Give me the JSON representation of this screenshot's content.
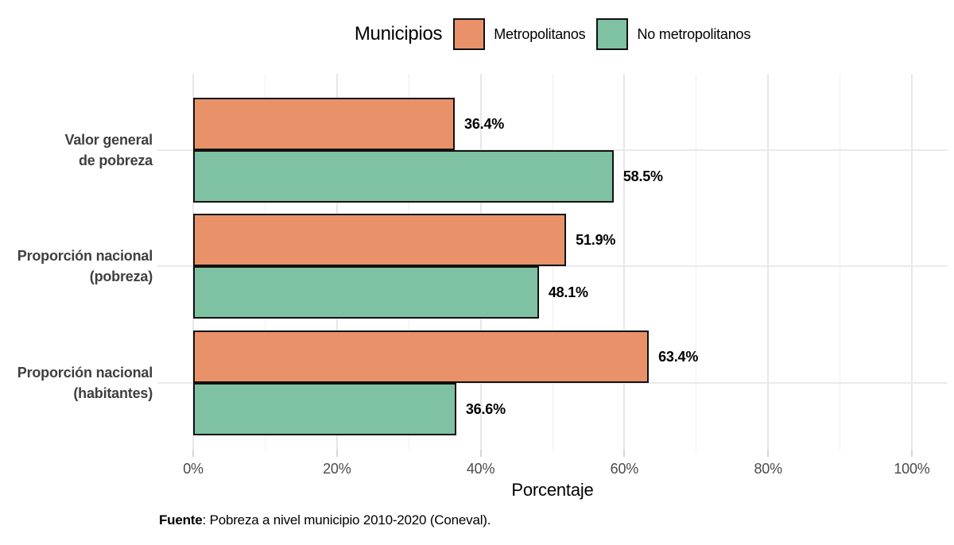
{
  "legend": {
    "title": "Municipios",
    "items": [
      {
        "label": "Metropolitanos",
        "color": "#E9926A"
      },
      {
        "label": "No metropolitanos",
        "color": "#7FC1A3"
      }
    ]
  },
  "chart_data": {
    "type": "bar",
    "orientation": "horizontal",
    "title": "",
    "categories": [
      "Valor general\nde pobreza",
      "Proporción nacional\n(pobreza)",
      "Proporción nacional\n(habitantes)"
    ],
    "series": [
      {
        "name": "Metropolitanos",
        "color": "#E9926A",
        "values": [
          36.4,
          51.9,
          63.4
        ],
        "labels": [
          "36.4%",
          "51.9%",
          "63.4%"
        ]
      },
      {
        "name": "No metropolitanos",
        "color": "#7FC1A3",
        "values": [
          58.5,
          48.1,
          36.6
        ],
        "labels": [
          "58.5%",
          "48.1%",
          "36.6%"
        ]
      }
    ],
    "xlabel": "Porcentaje",
    "ylabel": "",
    "xlim": [
      0,
      100
    ],
    "x_ticks": [
      {
        "value": 0,
        "label": "0%"
      },
      {
        "value": 20,
        "label": "20%"
      },
      {
        "value": 40,
        "label": "40%"
      },
      {
        "value": 60,
        "label": "60%"
      },
      {
        "value": 80,
        "label": "80%"
      },
      {
        "value": 100,
        "label": "100%"
      }
    ],
    "x_minor_ticks": [
      10,
      30,
      50,
      70,
      90
    ],
    "grid": "vertical major+minor, horizontal at category centers",
    "legend_position": "top-center",
    "bar_border_color": "#111111",
    "background": "#ffffff"
  },
  "caption": {
    "bold": "Fuente",
    "text": ": Pobreza a nivel municipio 2010-2020 (Coneval)."
  }
}
